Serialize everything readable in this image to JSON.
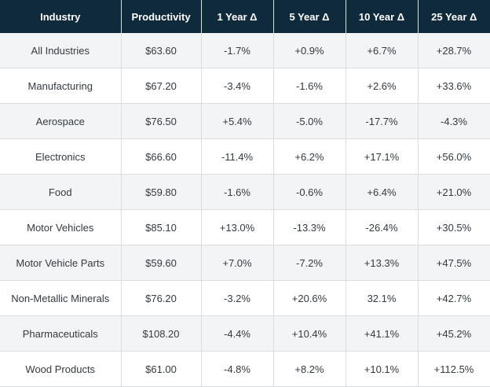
{
  "table": {
    "headers": [
      "Industry",
      "Productivity",
      "1 Year Δ",
      "5 Year Δ",
      "10 Year Δ",
      "25 Year Δ"
    ],
    "rows": [
      [
        "All Industries",
        "$63.60",
        "-1.7%",
        "+0.9%",
        "+6.7%",
        "+28.7%"
      ],
      [
        "Manufacturing",
        "$67.20",
        "-3.4%",
        "-1.6%",
        "+2.6%",
        "+33.6%"
      ],
      [
        "Aerospace",
        "$76.50",
        "+5.4%",
        "-5.0%",
        "-17.7%",
        "-4.3%"
      ],
      [
        "Electronics",
        "$66.60",
        "-11.4%",
        "+6.2%",
        "+17.1%",
        "+56.0%"
      ],
      [
        "Food",
        "$59.80",
        "-1.6%",
        "-0.6%",
        "+6.4%",
        "+21.0%"
      ],
      [
        "Motor Vehicles",
        "$85.10",
        "+13.0%",
        "-13.3%",
        "-26.4%",
        "+30.5%"
      ],
      [
        "Motor Vehicle Parts",
        "$59.60",
        "+7.0%",
        "-7.2%",
        "+13.3%",
        "+47.5%"
      ],
      [
        "Non-Metallic Minerals",
        "$76.20",
        "-3.2%",
        "+20.6%",
        "32.1%",
        "+42.7%"
      ],
      [
        "Pharmaceuticals",
        "$108.20",
        "-4.4%",
        "+10.4%",
        "+41.1%",
        "+45.2%"
      ],
      [
        "Wood Products",
        "$61.00",
        "-4.8%",
        "+8.2%",
        "+10.1%",
        "+112.5%"
      ]
    ]
  },
  "colors": {
    "header_bg": "#0e2a3b",
    "header_text": "#ffffff",
    "row_alt_bg": "#f3f4f5",
    "grid_line": "#d9dde0"
  }
}
